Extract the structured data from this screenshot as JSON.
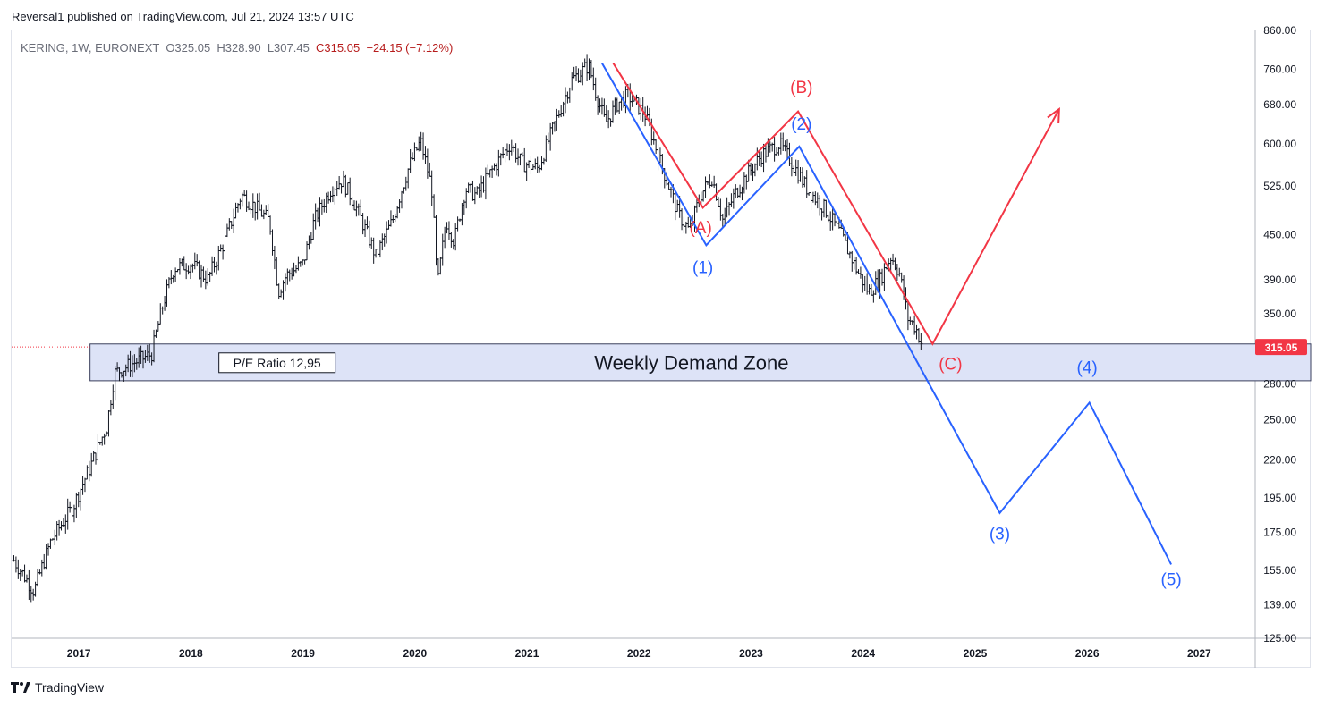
{
  "header": {
    "publisher_line": "Reversal1 published on TradingView.com, Jul 21, 2024 13:57 UTC"
  },
  "legend": {
    "symbol": "KERING, 1W, EURONEXT",
    "open": "O325.05",
    "high": "H328.90",
    "low": "L307.45",
    "close": "C315.05",
    "change": "−24.15 (−7.12%)"
  },
  "footer": {
    "brand": "TradingView",
    "logo_icon": "tradingview-logo-icon"
  },
  "colors": {
    "candle": "#131722",
    "red": "#f23645",
    "blue": "#2962ff",
    "zone_fill": "#dde3f7",
    "price_badge": "#f23645"
  },
  "chart_data": {
    "type": "line",
    "title": "",
    "scale": "log",
    "ylim": [
      125,
      860
    ],
    "xlim": [
      2016.4,
      2027.5
    ],
    "y_ticks": [
      {
        "v": 125,
        "label": "125.00"
      },
      {
        "v": 139,
        "label": "139.00"
      },
      {
        "v": 155,
        "label": "155.00"
      },
      {
        "v": 175,
        "label": "175.00"
      },
      {
        "v": 195,
        "label": "195.00"
      },
      {
        "v": 220,
        "label": "220.00"
      },
      {
        "v": 250,
        "label": "250.00"
      },
      {
        "v": 280,
        "label": "280.00"
      },
      {
        "v": 315,
        "label": "315.00"
      },
      {
        "v": 350,
        "label": "350.00"
      },
      {
        "v": 390,
        "label": "390.00"
      },
      {
        "v": 450,
        "label": "450.00"
      },
      {
        "v": 525,
        "label": "525.00"
      },
      {
        "v": 600,
        "label": "600.00"
      },
      {
        "v": 680,
        "label": "680.00"
      },
      {
        "v": 760,
        "label": "760.00"
      },
      {
        "v": 860,
        "label": "860.00"
      }
    ],
    "x_ticks": [
      {
        "v": 2017,
        "label": "2017"
      },
      {
        "v": 2018,
        "label": "2018"
      },
      {
        "v": 2019,
        "label": "2019"
      },
      {
        "v": 2020,
        "label": "2020"
      },
      {
        "v": 2021,
        "label": "2021"
      },
      {
        "v": 2022,
        "label": "2022"
      },
      {
        "v": 2023,
        "label": "2023"
      },
      {
        "v": 2024,
        "label": "2024"
      },
      {
        "v": 2025,
        "label": "2025"
      },
      {
        "v": 2026,
        "label": "2026"
      },
      {
        "v": 2027,
        "label": "2027"
      }
    ],
    "last_price": {
      "v": 315.05,
      "label": "315.05"
    },
    "price_path": [
      [
        2016.42,
        160
      ],
      [
        2016.6,
        145
      ],
      [
        2016.75,
        170
      ],
      [
        2016.95,
        190
      ],
      [
        2017.1,
        215
      ],
      [
        2017.25,
        245
      ],
      [
        2017.32,
        290
      ],
      [
        2017.5,
        300
      ],
      [
        2017.65,
        308
      ],
      [
        2017.75,
        360
      ],
      [
        2017.85,
        405
      ],
      [
        2018.0,
        410
      ],
      [
        2018.15,
        390
      ],
      [
        2018.3,
        440
      ],
      [
        2018.45,
        510
      ],
      [
        2018.55,
        495
      ],
      [
        2018.7,
        470
      ],
      [
        2018.78,
        375
      ],
      [
        2018.85,
        395
      ],
      [
        2019.0,
        410
      ],
      [
        2019.1,
        470
      ],
      [
        2019.25,
        520
      ],
      [
        2019.35,
        535
      ],
      [
        2019.45,
        500
      ],
      [
        2019.55,
        460
      ],
      [
        2019.65,
        420
      ],
      [
        2019.8,
        470
      ],
      [
        2019.95,
        560
      ],
      [
        2020.05,
        605
      ],
      [
        2020.15,
        520
      ],
      [
        2020.2,
        380
      ],
      [
        2020.28,
        470
      ],
      [
        2020.35,
        440
      ],
      [
        2020.45,
        520
      ],
      [
        2020.55,
        510
      ],
      [
        2020.7,
        555
      ],
      [
        2020.85,
        600
      ],
      [
        2020.95,
        565
      ],
      [
        2021.1,
        555
      ],
      [
        2021.25,
        640
      ],
      [
        2021.4,
        735
      ],
      [
        2021.55,
        770
      ],
      [
        2021.62,
        700
      ],
      [
        2021.7,
        640
      ],
      [
        2021.8,
        680
      ],
      [
        2021.9,
        700
      ],
      [
        2022.05,
        660
      ],
      [
        2022.2,
        560
      ],
      [
        2022.35,
        480
      ],
      [
        2022.45,
        455
      ],
      [
        2022.55,
        510
      ],
      [
        2022.65,
        540
      ],
      [
        2022.75,
        470
      ],
      [
        2022.85,
        510
      ],
      [
        2022.95,
        540
      ],
      [
        2023.1,
        580
      ],
      [
        2023.25,
        600
      ],
      [
        2023.35,
        570
      ],
      [
        2023.5,
        520
      ],
      [
        2023.65,
        490
      ],
      [
        2023.8,
        450
      ],
      [
        2023.95,
        400
      ],
      [
        2024.05,
        375
      ],
      [
        2024.15,
        390
      ],
      [
        2024.25,
        420
      ],
      [
        2024.32,
        400
      ],
      [
        2024.4,
        345
      ],
      [
        2024.47,
        335
      ],
      [
        2024.53,
        315
      ]
    ],
    "demand_zone": {
      "label": "Weekly Demand Zone",
      "y_low": 283,
      "y_high": 318,
      "x_start": 2017.1
    },
    "pe_label": "P/E Ratio 12,95",
    "red_path": {
      "points": [
        [
          2021.77,
          775
        ],
        [
          2022.57,
          490
        ],
        [
          2023.42,
          665
        ],
        [
          2024.62,
          318
        ],
        [
          2025.75,
          670
        ]
      ],
      "arrow_end": [
        2025.75,
        670
      ]
    },
    "blue_path": {
      "points": [
        [
          2021.67,
          775
        ],
        [
          2022.6,
          435
        ],
        [
          2023.43,
          595
        ],
        [
          2025.22,
          186
        ],
        [
          2026.02,
          264
        ],
        [
          2026.75,
          158
        ]
      ]
    },
    "wave_labels": [
      {
        "text": "(A)",
        "color": "red",
        "x": 2022.55,
        "y": 452
      },
      {
        "text": "(B)",
        "color": "red",
        "x": 2023.45,
        "y": 705
      },
      {
        "text": "(C)",
        "color": "red",
        "x": 2024.78,
        "y": 293
      },
      {
        "text": "(1)",
        "color": "blue",
        "x": 2022.57,
        "y": 398
      },
      {
        "text": "(2)",
        "color": "blue",
        "x": 2023.45,
        "y": 628
      },
      {
        "text": "(3)",
        "color": "blue",
        "x": 2025.22,
        "y": 171
      },
      {
        "text": "(4)",
        "color": "blue",
        "x": 2026.0,
        "y": 290
      },
      {
        "text": "(5)",
        "color": "blue",
        "x": 2026.75,
        "y": 148
      }
    ]
  }
}
